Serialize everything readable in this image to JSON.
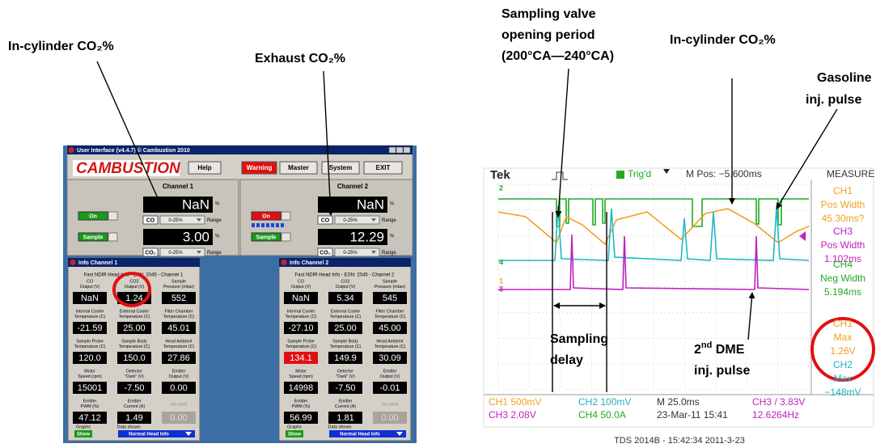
{
  "annotations": {
    "left_in_cylinder": "In-cylinder CO₂%",
    "exhaust": "Exhaust CO₂%",
    "valve_period": [
      "Sampling valve",
      "opening period",
      "(200°CA—240°CA)"
    ],
    "right_in_cylinder": "In-cylinder CO₂%",
    "gasoline": [
      "Gasoline",
      "inj. pulse"
    ],
    "sampling_delay": [
      "Sampling",
      "delay"
    ],
    "dme": {
      "ordinal": "2",
      "ordinal_suffix": "nd",
      "label": " DME",
      "line2": "inj. pulse"
    }
  },
  "ui": {
    "window_title": "User Interface (v4.4.7) © Cambustion 2010",
    "logo": "CAMBUSTION",
    "buttons": [
      "Help",
      "Warning",
      "Master",
      "System",
      "EXIT"
    ],
    "labels": {
      "percent": "%",
      "co": "CO",
      "co2": "CO₂",
      "range_option": "0-25%",
      "range": "Range"
    },
    "channels": [
      {
        "title": "Channel 1",
        "co_value": "NaN",
        "co2_value": "3.00",
        "status": "On",
        "status_color": "#1a9a1a",
        "mode": "Sample"
      },
      {
        "title": "Channel 2",
        "co_value": "NaN",
        "co2_value": "12.29",
        "status": "On",
        "status_color": "#e01010",
        "mode": "Sample"
      }
    ],
    "info_windows": [
      {
        "title": "Info Channel 1",
        "header": "Fast NDIR Head Info - ESN: 2045 - Channel 1",
        "fields": [
          {
            "label": [
              "CO",
              "Output (V)"
            ],
            "value": "NaN"
          },
          {
            "label": [
              "CO2",
              "Output (V)"
            ],
            "value": "1.24"
          },
          {
            "label": [
              "Sample",
              "Pressure (mbar)"
            ],
            "value": "552"
          },
          {
            "label": [
              "Internal Cooler",
              "Temperature (C)"
            ],
            "value": "-21.59"
          },
          {
            "label": [
              "External Cooler",
              "Temperature (C)"
            ],
            "value": "25.00"
          },
          {
            "label": [
              "Filter Chamber",
              "Temperature (C)"
            ],
            "value": "45.01"
          },
          {
            "label": [
              "Sample Probe",
              "Temperature (C)"
            ],
            "value": "120.0"
          },
          {
            "label": [
              "Sample Body",
              "Temperature (C)"
            ],
            "value": "150.0"
          },
          {
            "label": [
              "Head Ambient",
              "Temperature (C)"
            ],
            "value": "27.86"
          },
          {
            "label": [
              "Motor",
              "Speed (rpm)"
            ],
            "value": "15001"
          },
          {
            "label": [
              "Detector",
              "\"Dark\" (V)"
            ],
            "value": "-7.50"
          },
          {
            "label": [
              "Emitter",
              "Output (V)"
            ],
            "value": "0.00"
          },
          {
            "label": [
              "Emitter",
              "PWM (%)"
            ],
            "value": "47.12"
          },
          {
            "label": [
              "Emitter",
              "Current (A)"
            ],
            "value": "1.49"
          },
          {
            "label": [
              "not used"
            ],
            "value": "0.00",
            "disabled": true
          }
        ],
        "graphs": "Graphs",
        "show": "Show",
        "data_shown": "Data shown",
        "selection": "Normal Head Info"
      },
      {
        "title": "Info Channel 2",
        "header": "Fast NDIR Head Info - ESN: 2045 - Channel 2",
        "fields": [
          {
            "label": [
              "CO",
              "Output (V)"
            ],
            "value": "NaN"
          },
          {
            "label": [
              "CO2",
              "Output (V)"
            ],
            "value": "5.34"
          },
          {
            "label": [
              "Sample",
              "Pressure (mbar)"
            ],
            "value": "545"
          },
          {
            "label": [
              "Internal Cooler",
              "Temperature (C)"
            ],
            "value": "-27.10"
          },
          {
            "label": [
              "External Cooler",
              "Temperature (C)"
            ],
            "value": "25.00"
          },
          {
            "label": [
              "Filter Chamber",
              "Temperature (C)"
            ],
            "value": "45.00"
          },
          {
            "label": [
              "Sample Probe",
              "Temperature (C)"
            ],
            "value": "134.1",
            "highlight": true
          },
          {
            "label": [
              "Sample Body",
              "Temperature (C)"
            ],
            "value": "149.9"
          },
          {
            "label": [
              "Head Ambient",
              "Temperature (C)"
            ],
            "value": "30.09"
          },
          {
            "label": [
              "Motor",
              "Speed (rpm)"
            ],
            "value": "14998"
          },
          {
            "label": [
              "Detector",
              "\"Dark\" (V)"
            ],
            "value": "-7.50"
          },
          {
            "label": [
              "Emitter",
              "Output (V)"
            ],
            "value": "-0.01"
          },
          {
            "label": [
              "Emitter",
              "PWM (%)"
            ],
            "value": "56.99"
          },
          {
            "label": [
              "Emitter",
              "Current (A)"
            ],
            "value": "1.81"
          },
          {
            "label": [
              "not used"
            ],
            "value": "0.00",
            "disabled": true
          }
        ],
        "graphs": "Graphs",
        "show": "Show",
        "data_shown": "Data shown",
        "selection": "Normal Head Info"
      }
    ]
  },
  "scope": {
    "brand": "Tek",
    "trigger_status": "Trig'd",
    "position": "M Pos: −5.600ms",
    "measure_title": "MEASURE",
    "channel_markers": [
      {
        "label": "2",
        "color": "#22aa22"
      },
      {
        "label": "4",
        "color": "#22aa22"
      },
      {
        "label": "1",
        "color": "#f0a020"
      },
      {
        "label": "3",
        "color": "#c020c0"
      }
    ],
    "measurements": [
      {
        "lines": [
          "CH1",
          "Pos Width",
          "45.30ms?"
        ],
        "color": "#f0a020"
      },
      {
        "lines": [
          "CH3",
          "Pos Width",
          "1.102ms"
        ],
        "color": "#c020c0"
      },
      {
        "lines": [
          "CH4",
          "Neg Width",
          "5.194ms"
        ],
        "color": "#22aa22"
      },
      {
        "lines": [
          "CH1",
          "Max",
          "1.26V"
        ],
        "color": "#f0a020"
      },
      {
        "lines": [
          "CH2",
          "Max",
          "−148mV"
        ],
        "color": "#20b0c0"
      }
    ],
    "status_rows": [
      [
        {
          "text": "CH1  500mV",
          "color": "#f0a020"
        },
        {
          "text": "CH2  100mV",
          "color": "#20b0c0"
        },
        {
          "text": "M 25.0ms",
          "color": "#333333"
        },
        {
          "text": "CH3 / 3.83V",
          "color": "#c020c0"
        }
      ],
      [
        {
          "text": "CH3  2.08V",
          "color": "#c020c0"
        },
        {
          "text": "CH4  50.0A",
          "color": "#22aa22"
        },
        {
          "text": "23-Mar-11 15:41",
          "color": "#333333"
        },
        {
          "text": "12.6264Hz",
          "color": "#c020c0"
        }
      ]
    ],
    "caption": "TDS 2014B - 15:42:34 2011-3-23"
  }
}
